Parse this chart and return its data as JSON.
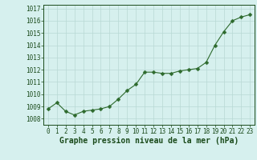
{
  "x": [
    0,
    1,
    2,
    3,
    4,
    5,
    6,
    7,
    8,
    9,
    10,
    11,
    12,
    13,
    14,
    15,
    16,
    17,
    18,
    19,
    20,
    21,
    22,
    23
  ],
  "y": [
    1008.8,
    1009.3,
    1008.6,
    1008.3,
    1008.6,
    1008.7,
    1008.8,
    1009.0,
    1009.6,
    1010.3,
    1010.8,
    1011.8,
    1011.8,
    1011.7,
    1011.7,
    1011.9,
    1012.0,
    1012.1,
    1012.6,
    1014.0,
    1015.1,
    1016.0,
    1016.3,
    1016.5
  ],
  "line_color": "#2d6a2d",
  "marker": "D",
  "marker_size": 2.5,
  "bg_color": "#d6f0ee",
  "grid_color": "#b8d8d4",
  "xlabel": "Graphe pression niveau de la mer (hPa)",
  "xlabel_fontsize": 7,
  "xlabel_color": "#1a4a1a",
  "ytick_labels": [
    "1008",
    "1009",
    "1010",
    "1011",
    "1012",
    "1013",
    "1014",
    "1015",
    "1016",
    "1017"
  ],
  "ytick_values": [
    1008,
    1009,
    1010,
    1011,
    1012,
    1013,
    1014,
    1015,
    1016,
    1017
  ],
  "ylim": [
    1007.5,
    1017.3
  ],
  "xlim": [
    -0.5,
    23.5
  ],
  "tick_fontsize": 5.5,
  "tick_color": "#1a4a1a",
  "line_width": 0.8
}
